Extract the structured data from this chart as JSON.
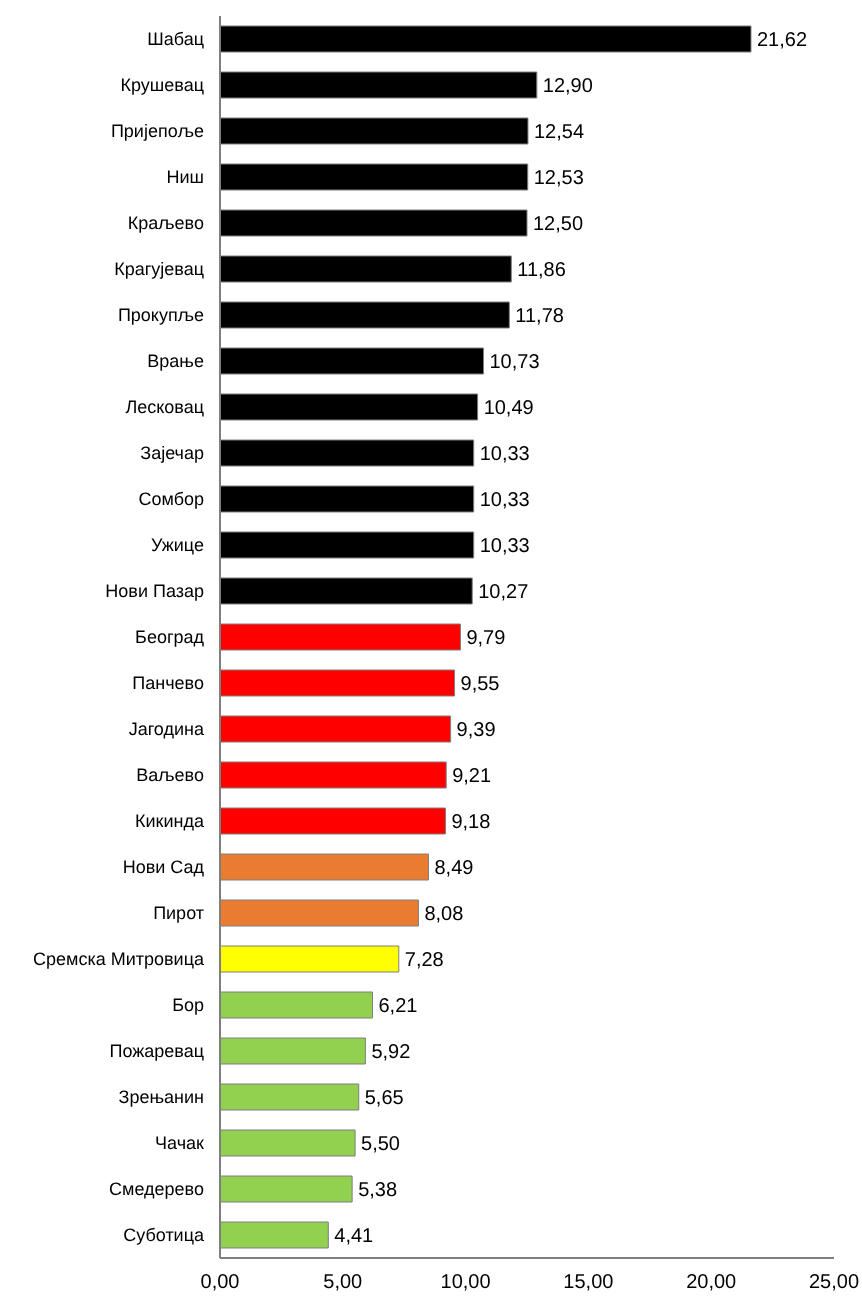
{
  "chart_data": {
    "type": "bar",
    "orientation": "horizontal",
    "categories": [
      "Шабац",
      "Крушевац",
      "Пријепоље",
      "Ниш",
      "Краљево",
      "Крагујевац",
      "Прокупље",
      "Врање",
      "Лесковац",
      "Зајечар",
      "Сомбор",
      "Ужице",
      "Нови Пазар",
      "Београд",
      "Панчево",
      "Јагодина",
      "Ваљево",
      "Кикинда",
      "Нови Сад",
      "Пирот",
      "Сремска Митровица",
      "Бор",
      "Пожаревац",
      "Зрењанин",
      "Чачак",
      "Смедерево",
      "Суботица"
    ],
    "values": [
      21.62,
      12.9,
      12.54,
      12.53,
      12.5,
      11.86,
      11.78,
      10.73,
      10.49,
      10.33,
      10.33,
      10.33,
      10.27,
      9.79,
      9.55,
      9.39,
      9.21,
      9.18,
      8.49,
      8.08,
      7.28,
      6.21,
      5.92,
      5.65,
      5.5,
      5.38,
      4.41
    ],
    "value_labels": [
      "21,62",
      "12,90",
      "12,54",
      "12,53",
      "12,50",
      "11,86",
      "11,78",
      "10,73",
      "10,49",
      "10,33",
      "10,33",
      "10,33",
      "10,27",
      "9,79",
      "9,55",
      "9,39",
      "9,21",
      "9,18",
      "8,49",
      "8,08",
      "7,28",
      "6,21",
      "5,92",
      "5,65",
      "5,50",
      "5,38",
      "4,41"
    ],
    "colors": [
      "#000000",
      "#000000",
      "#000000",
      "#000000",
      "#000000",
      "#000000",
      "#000000",
      "#000000",
      "#000000",
      "#000000",
      "#000000",
      "#000000",
      "#000000",
      "#ff0000",
      "#ff0000",
      "#ff0000",
      "#ff0000",
      "#ff0000",
      "#e97c30",
      "#e97c30",
      "#ffff00",
      "#92d050",
      "#92d050",
      "#92d050",
      "#92d050",
      "#92d050",
      "#92d050"
    ],
    "xlim": [
      0,
      25
    ],
    "xticks": [
      {
        "value": 0,
        "label": "0,00"
      },
      {
        "value": 5,
        "label": "5,00"
      },
      {
        "value": 10,
        "label": "10,00"
      },
      {
        "value": 15,
        "label": "15,00"
      },
      {
        "value": 20,
        "label": "20,00"
      },
      {
        "value": 25,
        "label": "25,00"
      }
    ],
    "grid": false
  }
}
